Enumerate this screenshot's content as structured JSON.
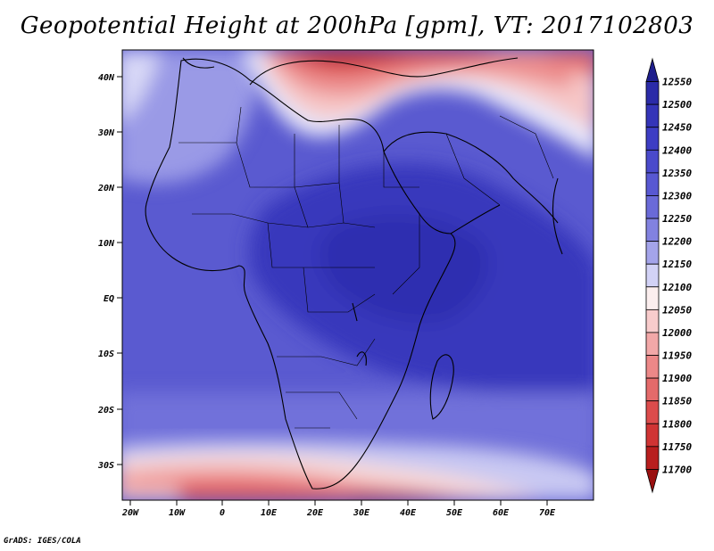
{
  "title": "Geopotential Height at 200hPa [gpm], VT: 2017102803",
  "credit": "GrADS: IGES/COLA",
  "map": {
    "lat_labels": [
      "40N",
      "30N",
      "20N",
      "10N",
      "EQ",
      "10S",
      "20S",
      "30S"
    ],
    "lon_labels": [
      "20W",
      "10W",
      "0",
      "10E",
      "20E",
      "30E",
      "40E",
      "50E",
      "60E",
      "70E"
    ]
  },
  "colorbar": {
    "levels": [
      "12550",
      "12500",
      "12450",
      "12400",
      "12350",
      "12300",
      "12250",
      "12200",
      "12150",
      "12100",
      "12050",
      "12000",
      "11950",
      "11900",
      "11850",
      "11800",
      "11750",
      "11700"
    ],
    "colors": [
      "#1e1e8c",
      "#2b2ba8",
      "#3434b8",
      "#3d3dc4",
      "#4a4acb",
      "#5858d2",
      "#6a6ad8",
      "#8282e0",
      "#a4a4ea",
      "#d2d2f6",
      "#fbeeee",
      "#f8cccc",
      "#f2a8a8",
      "#ec8888",
      "#e46a6a",
      "#dc4c4c",
      "#d03434",
      "#b81e1e",
      "#9a1010"
    ]
  }
}
